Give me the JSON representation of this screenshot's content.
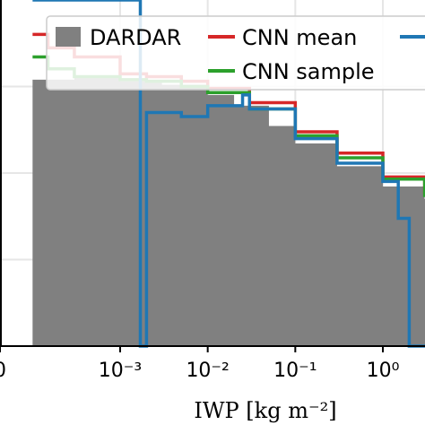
{
  "chart_data": {
    "type": "area",
    "xlabel": "IWP [kg m⁻²]",
    "x_scale": "log",
    "y_scale": "log",
    "xlim": [
      5e-05,
      5
    ],
    "ylim": [
      0.001,
      10
    ],
    "grid": true,
    "legend_position": "top",
    "x_tick_labels": [
      "0",
      "10⁻³",
      "10⁻²",
      "10⁻¹",
      "10⁰"
    ],
    "x_tick_values": [
      0.0001,
      0.001,
      0.01,
      0.1,
      1
    ],
    "series": [
      {
        "name": "DARDAR",
        "type": "bar",
        "color": "#808080",
        "x": [
          0.0001,
          0.0003,
          0.001,
          0.003,
          0.01,
          0.02,
          0.05,
          0.1,
          0.3,
          1,
          3
        ],
        "y": [
          1.2,
          1.25,
          1.15,
          1.05,
          0.8,
          0.6,
          0.35,
          0.22,
          0.12,
          0.07,
          0.05
        ]
      },
      {
        "name": "CNN mean",
        "type": "line",
        "color": "#d62728",
        "x": [
          0.0001,
          0.00015,
          0.0003,
          0.001,
          0.002,
          0.005,
          0.01,
          0.03,
          0.1,
          0.3,
          1,
          3
        ],
        "y": [
          4,
          2.8,
          2.2,
          1.4,
          1.3,
          1.15,
          0.95,
          0.65,
          0.3,
          0.17,
          0.09,
          0.06
        ]
      },
      {
        "name": "CNN sample",
        "type": "line",
        "color": "#2ca02c",
        "x": [
          0.0001,
          0.00015,
          0.0003,
          0.001,
          0.002,
          0.005,
          0.01,
          0.03,
          0.1,
          0.3,
          1,
          3
        ],
        "y": [
          2.2,
          1.6,
          1.3,
          1.2,
          1.15,
          1.0,
          0.85,
          0.55,
          0.27,
          0.15,
          0.085,
          0.055
        ]
      },
      {
        "name": "",
        "type": "line",
        "color": "#1f77b4",
        "x": [
          0.0001,
          0.0017,
          0.002,
          0.005,
          0.01,
          0.025,
          0.03,
          0.1,
          0.3,
          1,
          1.5,
          2
        ],
        "y": [
          10,
          0.001,
          0.5,
          0.45,
          0.6,
          0.8,
          0.55,
          0.25,
          0.13,
          0.08,
          0.03,
          0.001
        ]
      }
    ]
  }
}
